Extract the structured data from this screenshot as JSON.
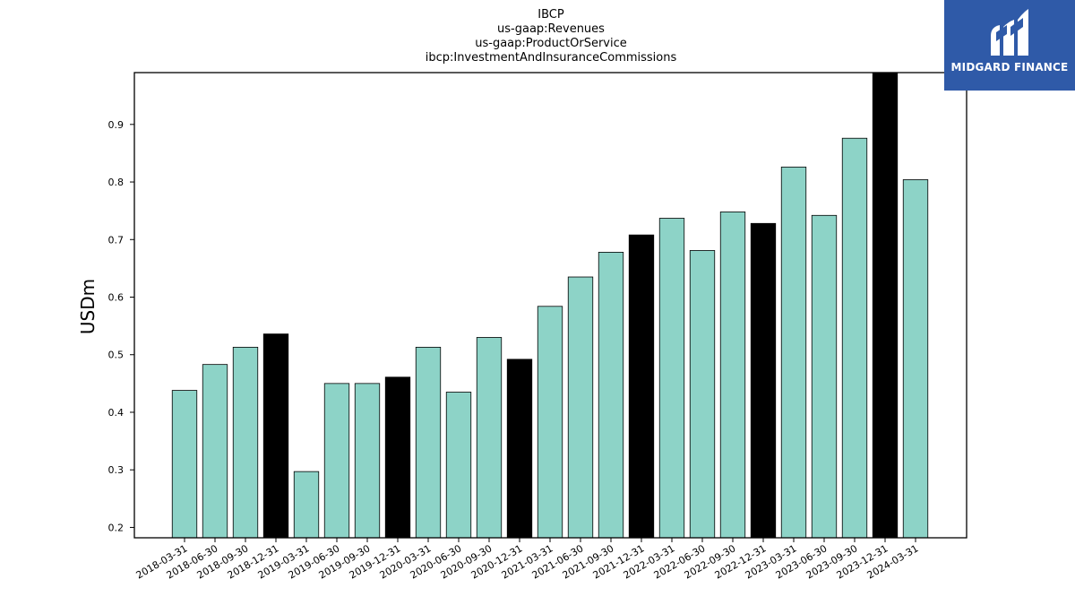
{
  "chart_data": {
    "type": "bar",
    "title_lines": [
      "IBCP",
      "us-gaap:Revenues",
      "us-gaap:ProductOrService",
      "ibcp:InvestmentAndInsuranceCommissions"
    ],
    "xlabel": "",
    "ylabel": "USDm",
    "ylim": [
      0.182,
      0.99
    ],
    "yticks": [
      "0.2",
      "0.3",
      "0.4",
      "0.5",
      "0.6",
      "0.7",
      "0.8",
      "0.9"
    ],
    "ytick_values": [
      0.2,
      0.3,
      0.4,
      0.5,
      0.6,
      0.7,
      0.8,
      0.9
    ],
    "grid": false,
    "categories": [
      "2018-03-31",
      "2018-06-30",
      "2018-09-30",
      "2018-12-31",
      "2019-03-31",
      "2019-06-30",
      "2019-09-30",
      "2019-12-31",
      "2020-03-31",
      "2020-06-30",
      "2020-09-30",
      "2020-12-31",
      "2021-03-31",
      "2021-06-30",
      "2021-09-30",
      "2021-12-31",
      "2022-03-31",
      "2022-06-30",
      "2022-09-30",
      "2022-12-31",
      "2023-03-31",
      "2023-06-30",
      "2023-09-30",
      "2023-12-31",
      "2024-03-31"
    ],
    "values": [
      0.438,
      0.483,
      0.513,
      0.536,
      0.297,
      0.45,
      0.45,
      0.461,
      0.513,
      0.435,
      0.53,
      0.492,
      0.584,
      0.635,
      0.678,
      0.708,
      0.737,
      0.681,
      0.748,
      0.728,
      0.826,
      0.742,
      0.876,
      0.99,
      0.804
    ],
    "highlighted": [
      false,
      false,
      false,
      true,
      false,
      false,
      false,
      true,
      false,
      false,
      false,
      true,
      false,
      false,
      false,
      true,
      false,
      false,
      false,
      true,
      false,
      false,
      false,
      true,
      false
    ],
    "colors": {
      "bar": "#8dd3c7",
      "highlight": "#000000",
      "edge": "#000000"
    }
  },
  "logo": {
    "text": "MIDGARD FINANCE",
    "color": "#2f5aa8"
  }
}
